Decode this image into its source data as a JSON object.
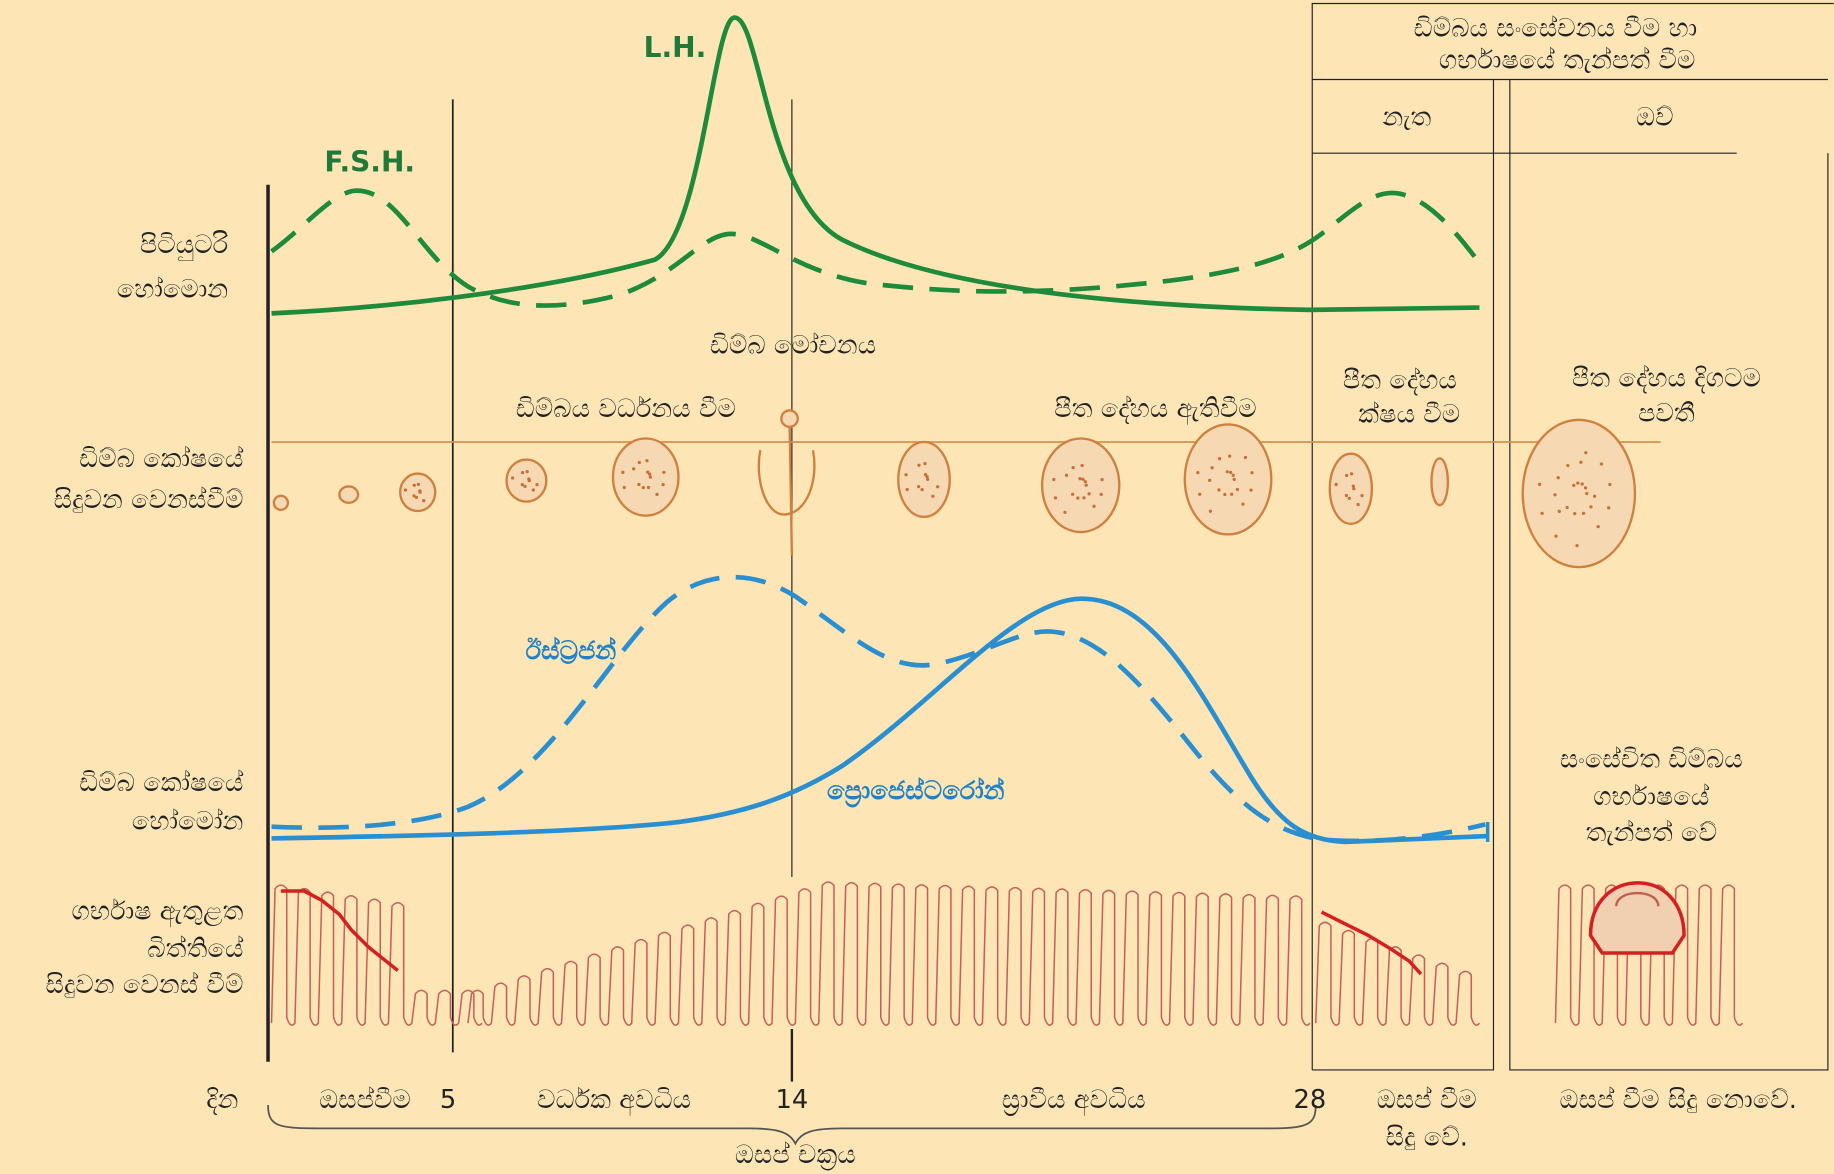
{
  "header": {
    "lines": [
      "ඩිම්බය සංසේචනය වීම හා",
      "ගර්භාෂයේ තැන්පත් වීම"
    ]
  },
  "columns": [
    "නැත",
    "ඔව්"
  ],
  "hormone_labels": {
    "lh": "L.H.",
    "fsh": "F.S.H.",
    "estrogen": "ඊස්ට්‍රජන්",
    "progesterone": "ප්‍රොජෙස්ටරෝන්"
  },
  "row_labels": [
    [
      "පිටියුටරි",
      "හෝමොන"
    ],
    [
      "ඩිම්බ කෝෂයේ",
      "සිදුවන වෙනස්වීම්"
    ],
    [
      "ඩිම්බ කෝෂයේ",
      "හෝමෝන"
    ],
    [
      "ගර්භාෂ ඇතුළත",
      "බිත්තියේ",
      "සිදුවන වෙනස් වීම්"
    ]
  ],
  "annotations": {
    "ovulation": "ඩිම්බ මෝචනය",
    "follicle_growth": "ඩිම්බය වර්ධනය වීම",
    "corpus_luteum_forms": "පීත දේහය ඇතිවීම",
    "corpus_luteum_decays": [
      "පීත දේහය",
      "ක්ෂය වීම"
    ],
    "corpus_luteum_persists": [
      "පීත දේහය දිගටම",
      "පවතී"
    ],
    "implantation": [
      "සංසේචිත ඩිම්බය",
      "ගර්භාෂයේ",
      "තැන්පත් වේ"
    ]
  },
  "timeline": {
    "day_label": "දින",
    "menstruation": "ඔසප්වීම",
    "day5": "5",
    "proliferative": "වර්ධක අවධිය",
    "day14": "14",
    "secretory": "ස්‍රාවීය අවධිය",
    "day28": "28",
    "menstruation_occurs": [
      "ඔසප් වීම",
      "සිදු වේ."
    ],
    "no_menstruation": "ඔසප් වීම සිදු නොවේ.",
    "cycle": "ඔසප් චක්‍රය"
  }
}
